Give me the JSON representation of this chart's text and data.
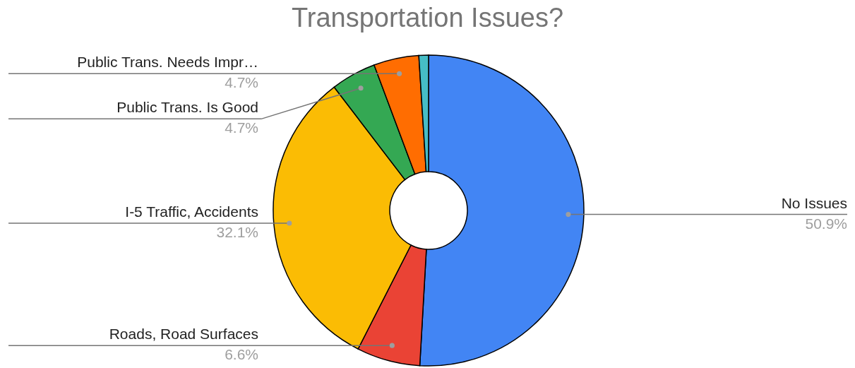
{
  "chart_data": {
    "type": "donut",
    "title": "Transportation Issues?",
    "categories": [
      "No Issues",
      "Roads, Road Surfaces",
      "I-5 Traffic, Accidents",
      "Public Trans. Is Good",
      "Public Trans. Needs Impr…",
      null
    ],
    "values": [
      50.9,
      6.6,
      32.1,
      4.7,
      4.7,
      1.0
    ],
    "colors": [
      "#4285f4",
      "#ea4335",
      "#fbbc04",
      "#34a853",
      "#ff6d01",
      "#46bdc6"
    ],
    "value_labels": [
      "50.9%",
      "6.6%",
      "32.1%",
      "4.7%",
      "4.7%",
      null
    ]
  }
}
